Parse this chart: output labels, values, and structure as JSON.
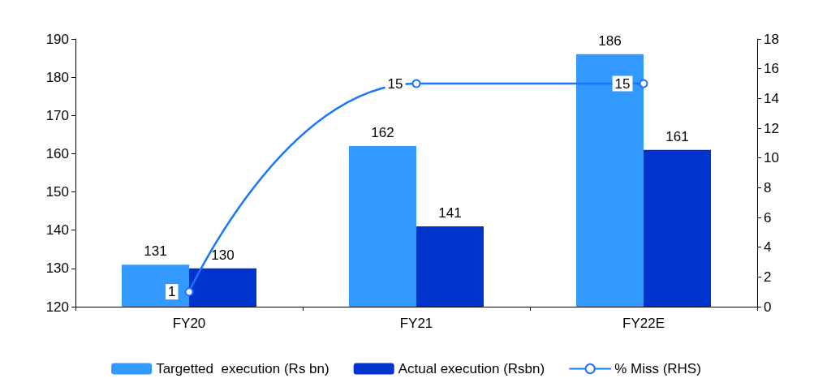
{
  "chart_data": {
    "type": "bar",
    "categories": [
      "FY20",
      "FY21",
      "FY22E"
    ],
    "series": [
      {
        "name": "Targetted  execution (Rs bn)",
        "color": "#3399ff",
        "values": [
          131,
          162,
          186
        ]
      },
      {
        "name": "Actual execution (Rsbn)",
        "color": "#0033cc",
        "values": [
          130,
          141,
          161
        ]
      },
      {
        "name": "% Miss (RHS)",
        "type": "line",
        "axis": "y2",
        "color": "#1a75ff",
        "values": [
          1,
          15,
          15
        ]
      }
    ],
    "ylim": [
      120,
      190
    ],
    "yticks": [
      120,
      130,
      140,
      150,
      160,
      170,
      180,
      190
    ],
    "y2lim": [
      0,
      18
    ],
    "y2ticks": [
      0,
      2,
      4,
      6,
      8,
      10,
      12,
      14,
      16,
      18
    ],
    "data_labels": true,
    "marker": "circle",
    "legend": "bottom",
    "grid": false
  }
}
